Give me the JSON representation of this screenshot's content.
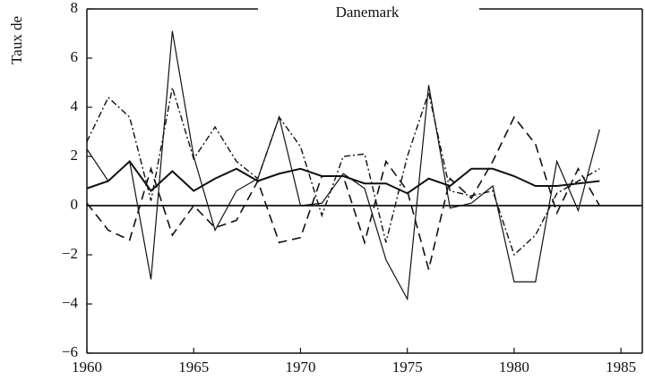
{
  "chart_data": {
    "type": "line",
    "title": "Danemark",
    "ylabel": "Taux de",
    "x": [
      1960,
      1961,
      1962,
      1963,
      1964,
      1965,
      1966,
      1967,
      1968,
      1969,
      1970,
      1971,
      1972,
      1973,
      1974,
      1975,
      1976,
      1977,
      1978,
      1979,
      1980,
      1981,
      1982,
      1983,
      1984
    ],
    "series": [
      {
        "color": "#111",
        "width": 2,
        "dash": "none",
        "values": [
          0.7,
          1.0,
          1.8,
          0.6,
          1.4,
          0.6,
          1.1,
          1.5,
          1.0,
          1.3,
          1.5,
          1.2,
          1.2,
          0.9,
          0.9,
          0.5,
          1.1,
          0.8,
          1.5,
          1.5,
          1.2,
          0.8,
          0.8,
          0.9,
          1.0
        ]
      },
      {
        "color": "#111",
        "width": 1.2,
        "dash": "none",
        "values": [
          2.3,
          1.0,
          1.8,
          -3.0,
          7.1,
          2.0,
          -1.0,
          0.6,
          1.1,
          3.6,
          0.0,
          0.1,
          1.3,
          0.7,
          -2.2,
          -3.8,
          4.9,
          -0.1,
          0.1,
          0.8,
          -3.1,
          -3.1,
          1.8,
          -0.2,
          3.1
        ]
      },
      {
        "color": "#111",
        "width": 1.6,
        "dash": "10 6",
        "values": [
          0.1,
          -1.0,
          -1.4,
          1.5,
          -1.2,
          0.0,
          -0.9,
          -0.6,
          1.0,
          -1.5,
          -1.3,
          1.2,
          1.2,
          -1.5,
          1.8,
          0.6,
          -2.6,
          1.1,
          0.3,
          1.8,
          3.6,
          2.5,
          -0.3,
          1.5,
          0.0
        ]
      },
      {
        "color": "#111",
        "width": 1.4,
        "dash": "7 3 2 3",
        "values": [
          2.6,
          4.4,
          3.6,
          0.2,
          4.8,
          1.9,
          3.2,
          1.8,
          1.1,
          3.6,
          2.4,
          -0.4,
          2.0,
          2.1,
          -1.5,
          2.0,
          4.6,
          0.6,
          0.4,
          0.6,
          -2.0,
          -1.2,
          0.5,
          1.0,
          1.5
        ]
      }
    ],
    "xlim": [
      1960,
      1986
    ],
    "xticks": [
      1960,
      1965,
      1970,
      1975,
      1980,
      1985
    ],
    "ylim": [
      -6,
      8
    ],
    "yticks": [
      {
        "value": -6,
        "label": "−6"
      },
      {
        "value": -4,
        "label": "−4"
      },
      {
        "value": -2,
        "label": "−2"
      },
      0,
      2,
      4,
      6,
      8
    ],
    "hline": 0
  }
}
